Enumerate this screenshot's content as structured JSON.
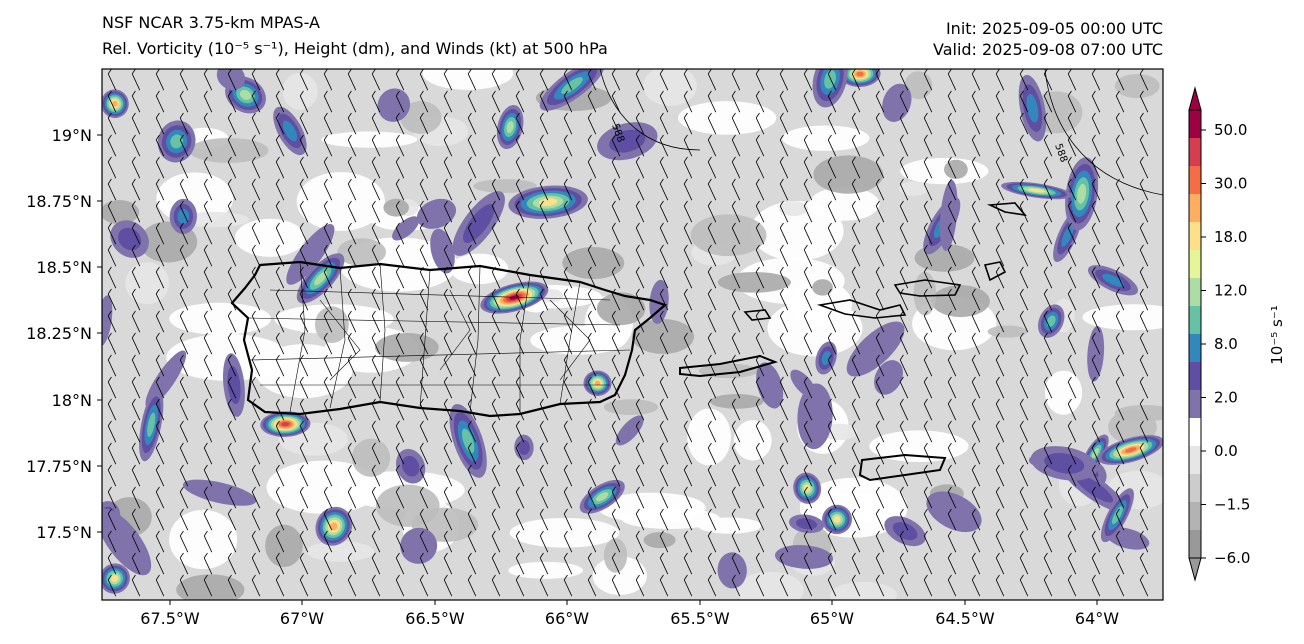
{
  "title": {
    "line1": "NSF NCAR 3.75-km MPAS-A",
    "line2": "Rel. Vorticity (10⁻⁵ s⁻¹), Height (dm), and Winds (kt) at 500 hPa",
    "init": "Init: 2025-09-05 00:00 UTC",
    "valid": "Valid: 2025-09-08 07:00 UTC"
  },
  "axes": {
    "lon_ticks": [
      "67.5°W",
      "67°W",
      "66.5°W",
      "66°W",
      "65.5°W",
      "65°W",
      "64.5°W",
      "64°W"
    ],
    "lat_ticks": [
      "19°N",
      "18.75°N",
      "18.5°N",
      "18.25°N",
      "18°N",
      "17.75°N",
      "17.5°N"
    ]
  },
  "contour_labels": [
    "588",
    "588"
  ],
  "colorbar": {
    "label": "10⁻⁵ s⁻¹",
    "ticks": [
      "50.0",
      "30.0",
      "18.0",
      "12.0",
      "8.0",
      "2.0",
      "0.0",
      "−1.5",
      "−6.0"
    ],
    "colors": [
      "#9e0142",
      "#d53e4f",
      "#f46d43",
      "#fdae61",
      "#fee08b",
      "#e6f598",
      "#abdda4",
      "#66c2a5",
      "#3288bd",
      "#5e4fa2",
      "#8073ac",
      "#ffffff",
      "#e6e6e6",
      "#cccccc",
      "#b3b3b3",
      "#999999"
    ]
  },
  "palette": {
    "coast": "#000000",
    "barb": "#000000",
    "ocean_bg": "#ffffff"
  }
}
